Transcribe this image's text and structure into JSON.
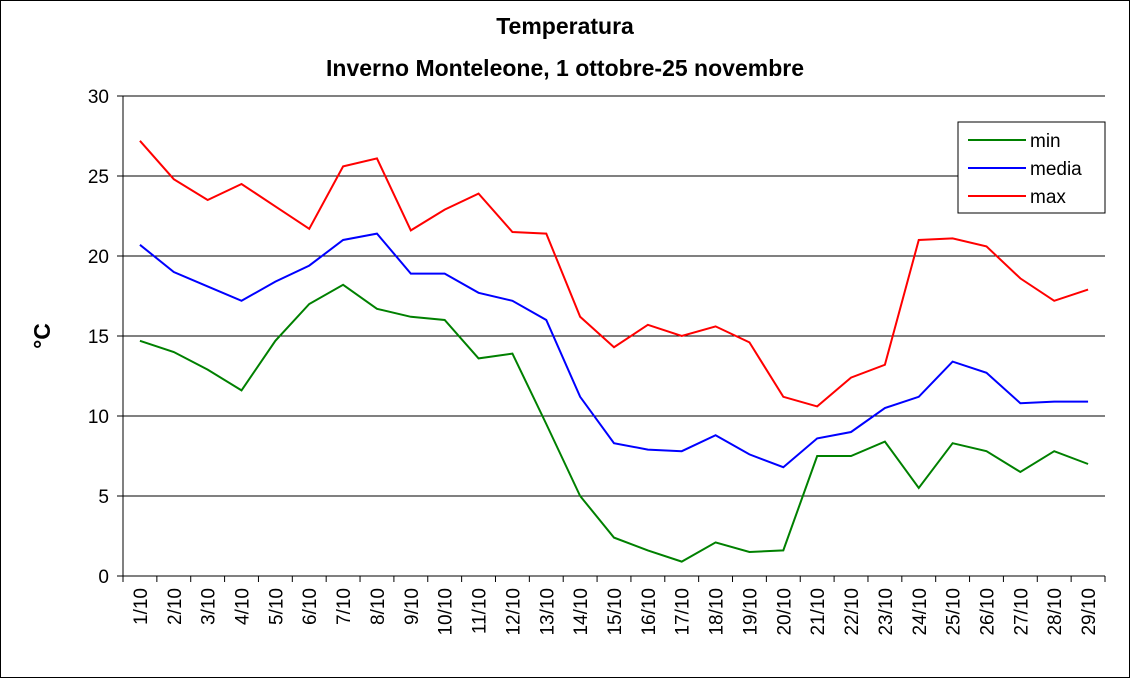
{
  "chart_data": {
    "type": "line",
    "title": "Temperatura",
    "subtitle": "Inverno Monteleone, 1 ottobre-25 novembre",
    "y_label": "°C",
    "categories": [
      "1/10",
      "2/10",
      "3/10",
      "4/10",
      "5/10",
      "6/10",
      "7/10",
      "8/10",
      "9/10",
      "10/10",
      "11/10",
      "12/10",
      "13/10",
      "14/10",
      "15/10",
      "16/10",
      "17/10",
      "18/10",
      "19/10",
      "20/10",
      "21/10",
      "22/10",
      "23/10",
      "24/10",
      "25/10",
      "26/10",
      "27/10",
      "28/10",
      "29/10"
    ],
    "series": [
      {
        "name": "min",
        "color": "#008000",
        "values": [
          14.7,
          14.0,
          12.9,
          11.6,
          14.7,
          17.0,
          18.2,
          16.7,
          16.2,
          16.0,
          13.6,
          13.9,
          9.5,
          5.0,
          2.4,
          1.6,
          0.9,
          2.1,
          1.5,
          1.6,
          7.5,
          7.5,
          8.4,
          5.5,
          8.3,
          7.8,
          6.5,
          7.8,
          7.0
        ]
      },
      {
        "name": "media",
        "color": "#0000ff",
        "values": [
          20.7,
          19.0,
          18.1,
          17.2,
          18.4,
          19.4,
          21.0,
          21.4,
          18.9,
          18.9,
          17.7,
          17.2,
          16.0,
          11.2,
          8.3,
          7.9,
          7.8,
          8.8,
          7.6,
          6.8,
          8.6,
          9.0,
          10.5,
          11.2,
          13.4,
          12.7,
          10.8,
          10.9,
          10.9
        ]
      },
      {
        "name": "max",
        "color": "#ff0000",
        "values": [
          27.2,
          24.8,
          23.5,
          24.5,
          23.1,
          21.7,
          25.6,
          26.1,
          21.6,
          22.9,
          23.9,
          21.5,
          21.4,
          16.2,
          14.3,
          15.7,
          15.0,
          15.6,
          14.6,
          11.2,
          10.6,
          12.4,
          13.2,
          21.0,
          21.1,
          20.6,
          18.6,
          17.2,
          17.9
        ]
      }
    ],
    "ylim": [
      0,
      30
    ],
    "yticks": [
      0,
      5,
      10,
      15,
      20,
      25,
      30
    ],
    "grid": true,
    "legend": "top-right"
  }
}
